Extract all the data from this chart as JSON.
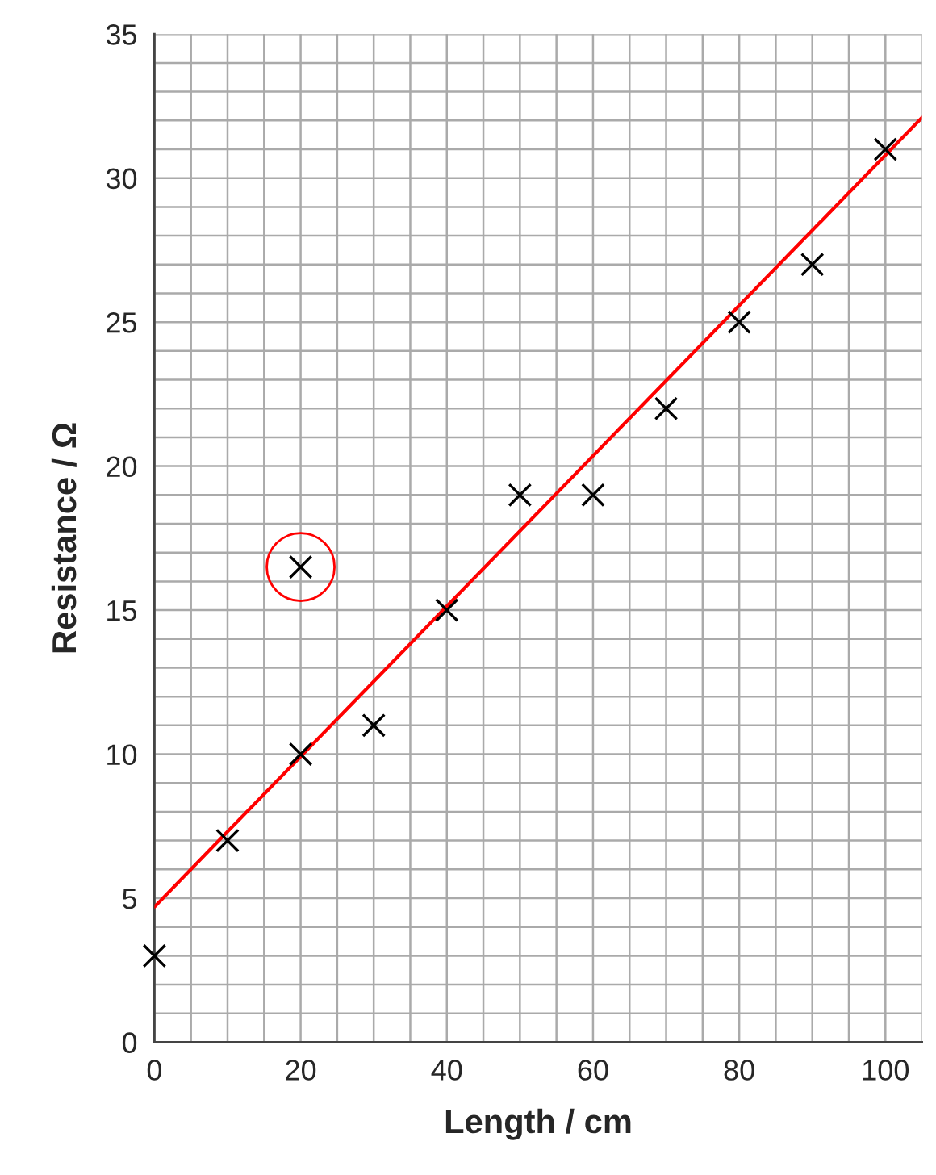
{
  "chart_data": {
    "type": "scatter",
    "xlabel": "Length / cm",
    "ylabel": "Resistance / Ω",
    "series": [
      {
        "color": "#000000",
        "marker": "cross",
        "x": [
          0,
          10,
          20,
          30,
          40,
          50,
          60,
          70,
          80,
          90,
          100
        ],
        "values": [
          3,
          7,
          10,
          11,
          15,
          19,
          19,
          22,
          25,
          27,
          31
        ]
      },
      {
        "color": "#000000",
        "marker": "cross",
        "x": [
          20
        ],
        "values": [
          16.5
        ]
      },
      {
        "type": "line",
        "color": "#ff0000",
        "x": [
          0,
          105
        ],
        "values": [
          4.7,
          32.1
        ]
      }
    ],
    "xlim": [
      0,
      105
    ],
    "ylim": [
      0,
      35
    ],
    "xticks": [
      0,
      20,
      40,
      60,
      80,
      100
    ],
    "yticks": [
      0,
      5,
      10,
      15,
      20,
      25,
      30,
      35
    ],
    "grid": true
  }
}
